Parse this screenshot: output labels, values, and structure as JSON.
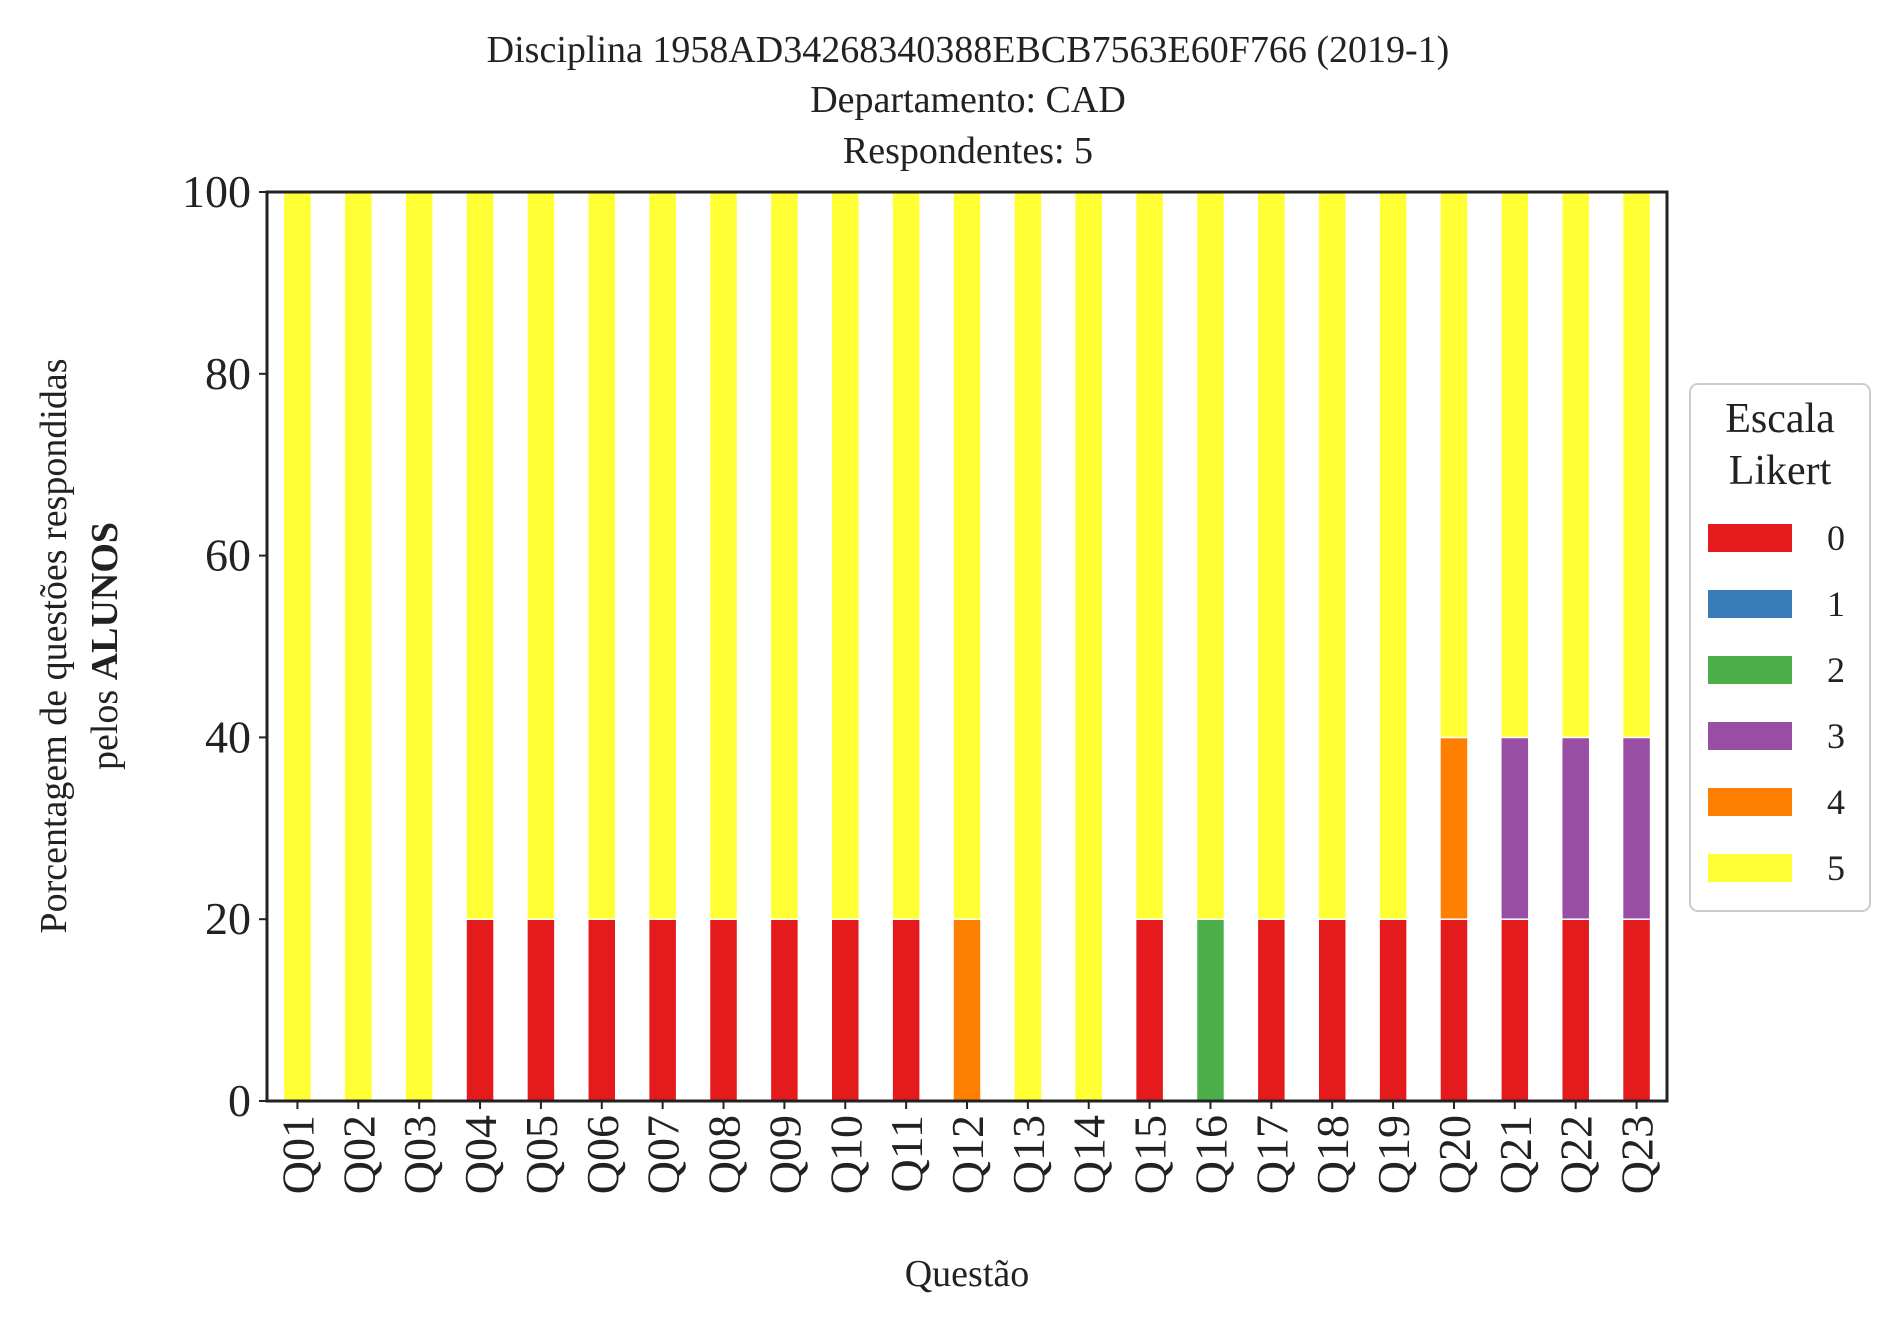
{
  "chart_data": {
    "type": "bar",
    "stacked": true,
    "title_lines": [
      "Disciplina 1958AD34268340388EBCB7563E60F766 (2019-1)",
      "Departamento: CAD",
      "Respondentes: 5"
    ],
    "xlabel": "Questão",
    "ylabel_line1": "Porcentagem de questões respondidas",
    "ylabel_line2_prefix": "pelos ",
    "ylabel_line2_bold": "ALUNOS",
    "ylim": [
      0,
      100
    ],
    "yticks": [
      "0",
      "20",
      "40",
      "60",
      "80",
      "100"
    ],
    "grid": false,
    "legend_placement": "right",
    "legend_title_lines": [
      "Escala",
      "Likert"
    ],
    "categories": [
      "Q01",
      "Q02",
      "Q03",
      "Q04",
      "Q05",
      "Q06",
      "Q07",
      "Q08",
      "Q09",
      "Q10",
      "Q11",
      "Q12",
      "Q13",
      "Q14",
      "Q15",
      "Q16",
      "Q17",
      "Q18",
      "Q19",
      "Q20",
      "Q21",
      "Q22",
      "Q23"
    ],
    "series": [
      {
        "name": "0",
        "color": "#e41a1c",
        "values": [
          0,
          0,
          0,
          20,
          20,
          20,
          20,
          20,
          20,
          20,
          20,
          0,
          0,
          0,
          20,
          0,
          20,
          20,
          20,
          20,
          20,
          20,
          20
        ]
      },
      {
        "name": "1",
        "color": "#377eb8",
        "values": [
          0,
          0,
          0,
          0,
          0,
          0,
          0,
          0,
          0,
          0,
          0,
          0,
          0,
          0,
          0,
          0,
          0,
          0,
          0,
          0,
          0,
          0,
          0
        ]
      },
      {
        "name": "2",
        "color": "#4daf4a",
        "values": [
          0,
          0,
          0,
          0,
          0,
          0,
          0,
          0,
          0,
          0,
          0,
          0,
          0,
          0,
          0,
          20,
          0,
          0,
          0,
          0,
          0,
          0,
          0
        ]
      },
      {
        "name": "3",
        "color": "#984ea3",
        "values": [
          0,
          0,
          0,
          0,
          0,
          0,
          0,
          0,
          0,
          0,
          0,
          0,
          0,
          0,
          0,
          0,
          0,
          0,
          0,
          0,
          20,
          20,
          20
        ]
      },
      {
        "name": "4",
        "color": "#ff7f00",
        "values": [
          0,
          0,
          0,
          0,
          0,
          0,
          0,
          0,
          0,
          0,
          0,
          20,
          0,
          0,
          0,
          0,
          0,
          0,
          0,
          20,
          0,
          0,
          0
        ]
      },
      {
        "name": "5",
        "color": "#ffff33",
        "values": [
          100,
          100,
          100,
          80,
          80,
          80,
          80,
          80,
          80,
          80,
          80,
          80,
          100,
          100,
          80,
          80,
          80,
          80,
          80,
          60,
          60,
          60,
          60
        ]
      }
    ]
  }
}
